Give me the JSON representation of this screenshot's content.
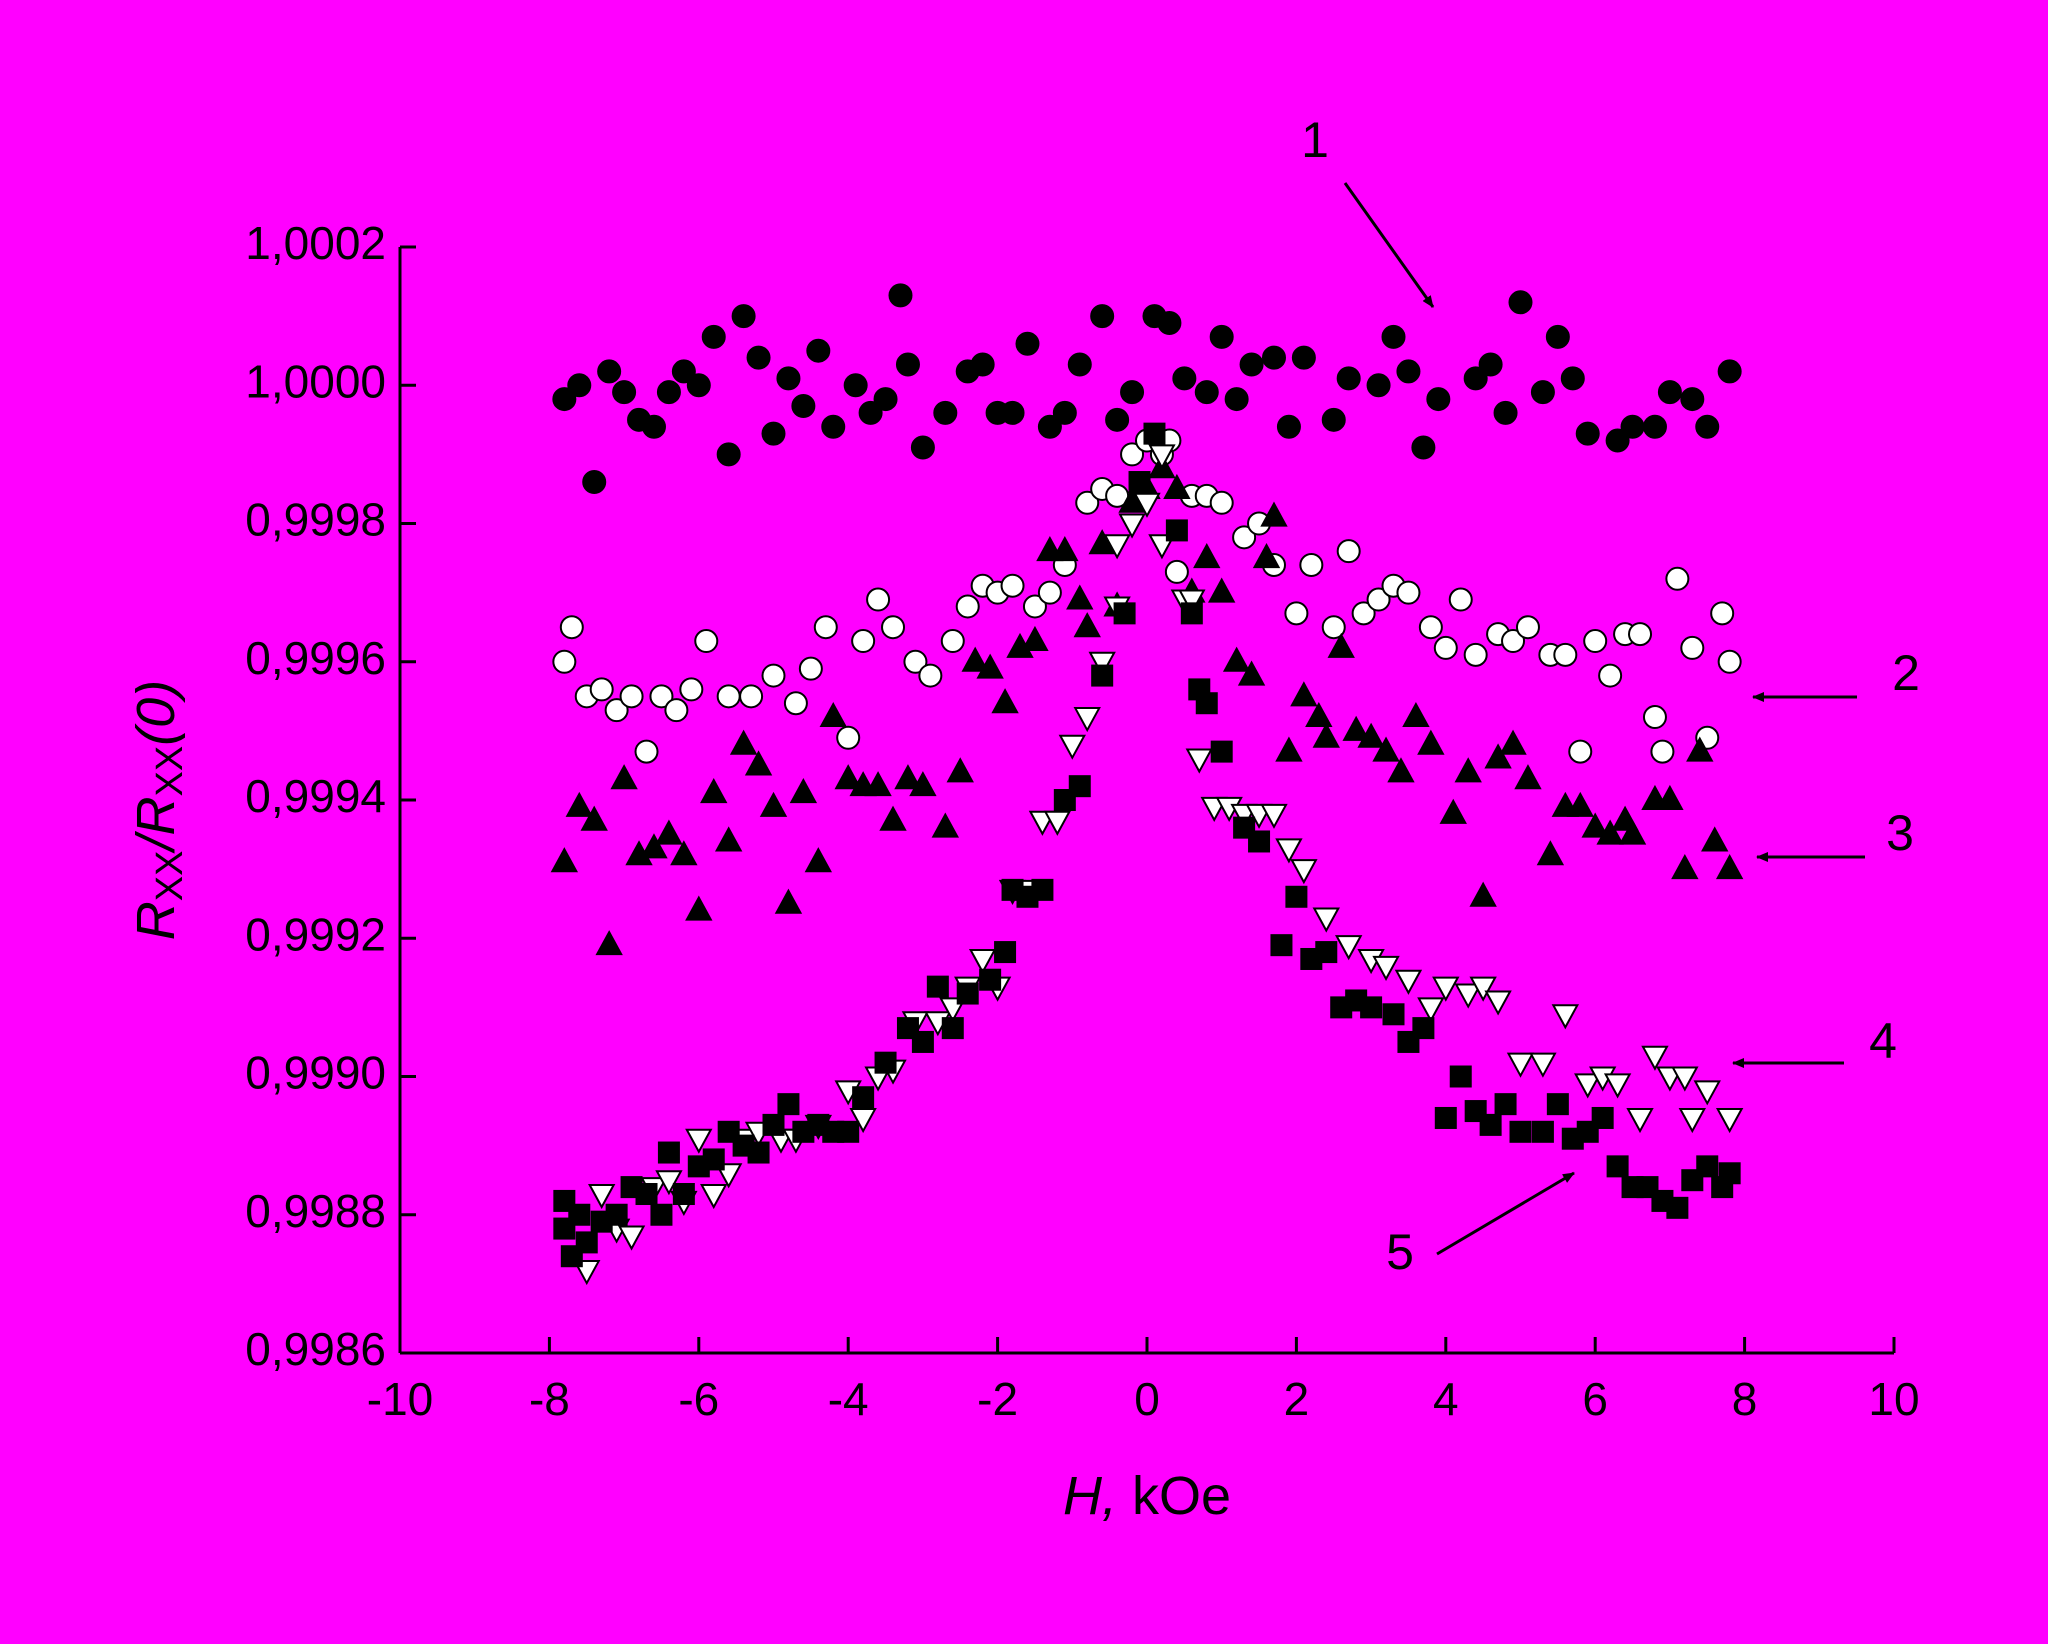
{
  "chart_data": {
    "type": "scatter",
    "xlabel": [
      "H,",
      " kOe"
    ],
    "ylabel": [
      "R",
      "XX",
      "/R",
      "XX",
      "(0)"
    ],
    "xlim": [
      -10,
      10
    ],
    "xticks": [
      -10,
      -8,
      -6,
      -4,
      -2,
      0,
      2,
      4,
      6,
      8,
      10
    ],
    "ylim": [
      0.9986,
      1.0002
    ],
    "yticks": [
      {
        "value": 0.9986,
        "label": "0,9986"
      },
      {
        "value": 0.9988,
        "label": "0,9988"
      },
      {
        "value": 0.999,
        "label": "0,9990"
      },
      {
        "value": 0.9992,
        "label": "0,9992"
      },
      {
        "value": 0.9994,
        "label": "0,9994"
      },
      {
        "value": 0.9996,
        "label": "0,9996"
      },
      {
        "value": 0.9998,
        "label": "0,9998"
      },
      {
        "value": 1.0,
        "label": "1,0000"
      },
      {
        "value": 1.0002,
        "label": "1,0002"
      }
    ],
    "annotations": [
      "1",
      "2",
      "3",
      "4",
      "5"
    ],
    "series": [
      {
        "marker": "circle",
        "filled": true,
        "color": "#000000",
        "x": [
          -7.8,
          -7.6,
          -7.4,
          -7.2,
          -7.0,
          -6.8,
          -6.6,
          -6.4,
          -6.2,
          -6.0,
          -5.8,
          -5.6,
          -5.4,
          -5.2,
          -5.0,
          -4.8,
          -4.6,
          -4.4,
          -4.2,
          -3.9,
          -3.7,
          -3.5,
          -3.3,
          -3.2,
          -3.0,
          -2.7,
          -2.4,
          -2.2,
          -2.0,
          -1.8,
          -1.6,
          -1.3,
          -1.1,
          -0.9,
          -0.6,
          -0.4,
          -0.2,
          0.1,
          0.3,
          0.5,
          0.8,
          1.0,
          1.2,
          1.4,
          1.7,
          1.9,
          2.1,
          2.5,
          2.7,
          3.1,
          3.3,
          3.5,
          3.7,
          3.9,
          4.4,
          4.6,
          4.8,
          5.0,
          5.3,
          5.5,
          5.7,
          5.9,
          6.3,
          6.5,
          6.8,
          7.0,
          7.3,
          7.5,
          7.8
        ],
        "values": [
          0.99998,
          1.0,
          0.99986,
          1.00002,
          0.99999,
          0.99995,
          0.99994,
          0.99999,
          1.00002,
          1.0,
          1.00007,
          0.9999,
          1.0001,
          1.00004,
          0.99993,
          1.00001,
          0.99997,
          1.00005,
          0.99994,
          1.0,
          0.99996,
          0.99998,
          1.00013,
          1.00003,
          0.99991,
          0.99996,
          1.00002,
          1.00003,
          0.99996,
          0.99996,
          1.00006,
          0.99994,
          0.99996,
          1.00003,
          1.0001,
          0.99995,
          0.99999,
          1.0001,
          1.00009,
          1.00001,
          0.99999,
          1.00007,
          0.99998,
          1.00003,
          1.00004,
          0.99994,
          1.00004,
          0.99995,
          1.00001,
          1.0,
          1.00007,
          1.00002,
          0.99991,
          0.99998,
          1.00001,
          1.00003,
          0.99996,
          1.00012,
          0.99999,
          1.00007,
          1.00001,
          0.99993,
          0.99992,
          0.99994,
          0.99994,
          0.99999,
          0.99998,
          0.99994,
          1.00002
        ]
      },
      {
        "marker": "circle",
        "filled": false,
        "color": "#000000",
        "x": [
          -7.8,
          -7.7,
          -7.5,
          -7.3,
          -7.1,
          -6.9,
          -6.7,
          -6.5,
          -6.3,
          -6.1,
          -5.9,
          -5.6,
          -5.3,
          -5.0,
          -4.7,
          -4.5,
          -4.3,
          -4.0,
          -3.8,
          -3.6,
          -3.4,
          -3.1,
          -2.9,
          -2.6,
          -2.4,
          -2.2,
          -2.0,
          -1.8,
          -1.5,
          -1.3,
          -1.1,
          -0.8,
          -0.6,
          -0.4,
          -0.2,
          0.0,
          0.2,
          0.3,
          0.4,
          0.6,
          0.8,
          1.0,
          1.3,
          1.5,
          1.7,
          2.0,
          2.2,
          2.5,
          2.7,
          2.9,
          3.1,
          3.3,
          3.5,
          3.8,
          4.0,
          4.2,
          4.4,
          4.7,
          4.9,
          5.1,
          5.4,
          5.6,
          5.8,
          6.0,
          6.2,
          6.4,
          6.6,
          6.8,
          6.9,
          7.1,
          7.3,
          7.5,
          7.7,
          7.8
        ],
        "values": [
          0.9996,
          0.99965,
          0.99955,
          0.99956,
          0.99953,
          0.99955,
          0.99947,
          0.99955,
          0.99953,
          0.99956,
          0.99963,
          0.99955,
          0.99955,
          0.99958,
          0.99954,
          0.99959,
          0.99965,
          0.99949,
          0.99963,
          0.99969,
          0.99965,
          0.9996,
          0.99958,
          0.99963,
          0.99968,
          0.99971,
          0.9997,
          0.99971,
          0.99968,
          0.9997,
          0.99974,
          0.99983,
          0.99985,
          0.99984,
          0.9999,
          0.99992,
          0.9999,
          0.99992,
          0.99973,
          0.99984,
          0.99984,
          0.99983,
          0.99978,
          0.9998,
          0.99974,
          0.99967,
          0.99974,
          0.99965,
          0.99976,
          0.99967,
          0.99969,
          0.99971,
          0.9997,
          0.99965,
          0.99962,
          0.99969,
          0.99961,
          0.99964,
          0.99963,
          0.99965,
          0.99961,
          0.99961,
          0.99947,
          0.99963,
          0.99958,
          0.99964,
          0.99964,
          0.99952,
          0.99947,
          0.99972,
          0.99962,
          0.99949,
          0.99967,
          0.9996
        ]
      },
      {
        "marker": "triangle-up",
        "filled": true,
        "color": "#000000",
        "x": [
          -7.8,
          -7.6,
          -7.4,
          -7.2,
          -7.0,
          -6.8,
          -6.6,
          -6.4,
          -6.2,
          -6.0,
          -5.8,
          -5.6,
          -5.4,
          -5.2,
          -5.0,
          -4.8,
          -4.6,
          -4.4,
          -4.2,
          -4.0,
          -3.8,
          -3.6,
          -3.4,
          -3.2,
          -3.0,
          -2.7,
          -2.5,
          -2.3,
          -2.1,
          -1.9,
          -1.7,
          -1.5,
          -1.3,
          -1.1,
          -0.9,
          -0.8,
          -0.6,
          -0.4,
          -0.2,
          0.0,
          0.2,
          0.4,
          0.6,
          0.8,
          1.0,
          1.2,
          1.4,
          1.6,
          1.7,
          1.9,
          2.1,
          2.3,
          2.4,
          2.6,
          2.8,
          3.0,
          3.2,
          3.4,
          3.6,
          3.8,
          4.1,
          4.3,
          4.5,
          4.7,
          4.9,
          5.1,
          5.4,
          5.6,
          5.8,
          6.0,
          6.2,
          6.4,
          6.5,
          6.8,
          7.0,
          7.2,
          7.4,
          7.6,
          7.8
        ],
        "values": [
          0.99931,
          0.99939,
          0.99937,
          0.99919,
          0.99943,
          0.99932,
          0.99933,
          0.99935,
          0.99932,
          0.99924,
          0.99941,
          0.99934,
          0.99948,
          0.99945,
          0.99939,
          0.99925,
          0.99941,
          0.99931,
          0.99952,
          0.99943,
          0.99942,
          0.99942,
          0.99937,
          0.99943,
          0.99942,
          0.99936,
          0.99944,
          0.9996,
          0.99959,
          0.99954,
          0.99962,
          0.99963,
          0.99976,
          0.99976,
          0.99969,
          0.99965,
          0.99977,
          0.99968,
          0.99983,
          0.99985,
          0.99988,
          0.99985,
          0.9997,
          0.99975,
          0.9997,
          0.9996,
          0.99958,
          0.99975,
          0.99981,
          0.99947,
          0.99955,
          0.99952,
          0.99949,
          0.99962,
          0.9995,
          0.99949,
          0.99947,
          0.99944,
          0.99952,
          0.99948,
          0.99938,
          0.99944,
          0.99926,
          0.99946,
          0.99948,
          0.99943,
          0.99932,
          0.99939,
          0.99939,
          0.99936,
          0.99935,
          0.99937,
          0.99935,
          0.9994,
          0.9994,
          0.9993,
          0.99947,
          0.99934,
          0.9993
        ]
      },
      {
        "marker": "triangle-down",
        "filled": false,
        "color": "#000000",
        "x": [
          -7.5,
          -7.3,
          -7.1,
          -6.9,
          -6.6,
          -6.4,
          -6.2,
          -6.0,
          -5.8,
          -5.6,
          -5.4,
          -5.2,
          -4.9,
          -4.7,
          -4.4,
          -4.0,
          -3.8,
          -3.6,
          -3.4,
          -3.1,
          -2.8,
          -2.6,
          -2.4,
          -2.2,
          -2.0,
          -1.8,
          -1.6,
          -1.4,
          -1.2,
          -1.0,
          -0.8,
          -0.6,
          -0.4,
          -0.4,
          -0.2,
          0.0,
          0.2,
          0.2,
          0.5,
          0.6,
          0.7,
          0.9,
          1.1,
          1.3,
          1.5,
          1.7,
          1.9,
          2.1,
          2.4,
          2.7,
          3.0,
          3.2,
          3.5,
          3.8,
          4.0,
          4.3,
          4.5,
          4.7,
          5.0,
          5.3,
          5.6,
          5.9,
          6.1,
          6.3,
          6.6,
          6.8,
          7.0,
          7.2,
          7.3,
          7.5,
          7.8
        ],
        "values": [
          0.99872,
          0.99883,
          0.99878,
          0.99877,
          0.99884,
          0.99885,
          0.99882,
          0.99891,
          0.99883,
          0.99886,
          0.99891,
          0.99892,
          0.99891,
          0.99891,
          0.99893,
          0.99898,
          0.99894,
          0.999,
          0.99901,
          0.99908,
          0.99908,
          0.9991,
          0.99913,
          0.99917,
          0.99913,
          0.99927,
          0.99927,
          0.99937,
          0.99937,
          0.99948,
          0.99952,
          0.9996,
          0.99968,
          0.99977,
          0.9998,
          0.99983,
          0.9999,
          0.99977,
          0.99969,
          0.99969,
          0.99946,
          0.99939,
          0.99939,
          0.99938,
          0.99938,
          0.99938,
          0.99933,
          0.9993,
          0.99923,
          0.99919,
          0.99917,
          0.99916,
          0.99914,
          0.9991,
          0.99913,
          0.99912,
          0.99913,
          0.99911,
          0.99902,
          0.99902,
          0.99909,
          0.99899,
          0.999,
          0.99899,
          0.99894,
          0.99903,
          0.999,
          0.999,
          0.99894,
          0.99898,
          0.99894
        ]
      },
      {
        "marker": "square",
        "filled": true,
        "color": "#000000",
        "x": [
          -7.8,
          -7.8,
          -7.7,
          -7.6,
          -7.5,
          -7.3,
          -7.1,
          -6.9,
          -6.7,
          -6.5,
          -6.4,
          -6.2,
          -6.0,
          -5.8,
          -5.6,
          -5.4,
          -5.2,
          -5.0,
          -4.8,
          -4.6,
          -4.4,
          -4.2,
          -4.0,
          -3.8,
          -3.5,
          -3.2,
          -3.0,
          -2.8,
          -2.6,
          -2.4,
          -2.1,
          -1.9,
          -1.8,
          -1.6,
          -1.4,
          -1.1,
          -0.9,
          -0.6,
          -0.3,
          -0.1,
          0.1,
          0.4,
          0.6,
          0.7,
          0.8,
          1.0,
          1.3,
          1.5,
          1.8,
          2.0,
          2.2,
          2.4,
          2.6,
          2.8,
          3.0,
          3.3,
          3.5,
          3.7,
          4.0,
          4.2,
          4.4,
          4.6,
          4.8,
          5.0,
          5.3,
          5.5,
          5.7,
          5.9,
          6.1,
          6.3,
          6.5,
          6.7,
          6.9,
          7.1,
          7.3,
          7.5,
          7.7,
          7.8
        ],
        "values": [
          0.99882,
          0.99878,
          0.99874,
          0.9988,
          0.99876,
          0.99879,
          0.9988,
          0.99884,
          0.99883,
          0.9988,
          0.99889,
          0.99883,
          0.99887,
          0.99888,
          0.99892,
          0.9989,
          0.99889,
          0.99893,
          0.99896,
          0.99892,
          0.99893,
          0.99892,
          0.99892,
          0.99897,
          0.99902,
          0.99907,
          0.99905,
          0.99913,
          0.99907,
          0.99912,
          0.99914,
          0.99918,
          0.99927,
          0.99926,
          0.99927,
          0.9994,
          0.99942,
          0.99958,
          0.99967,
          0.99986,
          0.99993,
          0.99979,
          0.99967,
          0.99956,
          0.99954,
          0.99947,
          0.99936,
          0.99934,
          0.99919,
          0.99926,
          0.99917,
          0.99918,
          0.9991,
          0.99911,
          0.9991,
          0.99909,
          0.99905,
          0.99907,
          0.99894,
          0.999,
          0.99895,
          0.99893,
          0.99896,
          0.99892,
          0.99892,
          0.99896,
          0.99891,
          0.99892,
          0.99894,
          0.99887,
          0.99884,
          0.99884,
          0.99882,
          0.99881,
          0.99885,
          0.99887,
          0.99884,
          0.99886
        ]
      }
    ]
  }
}
